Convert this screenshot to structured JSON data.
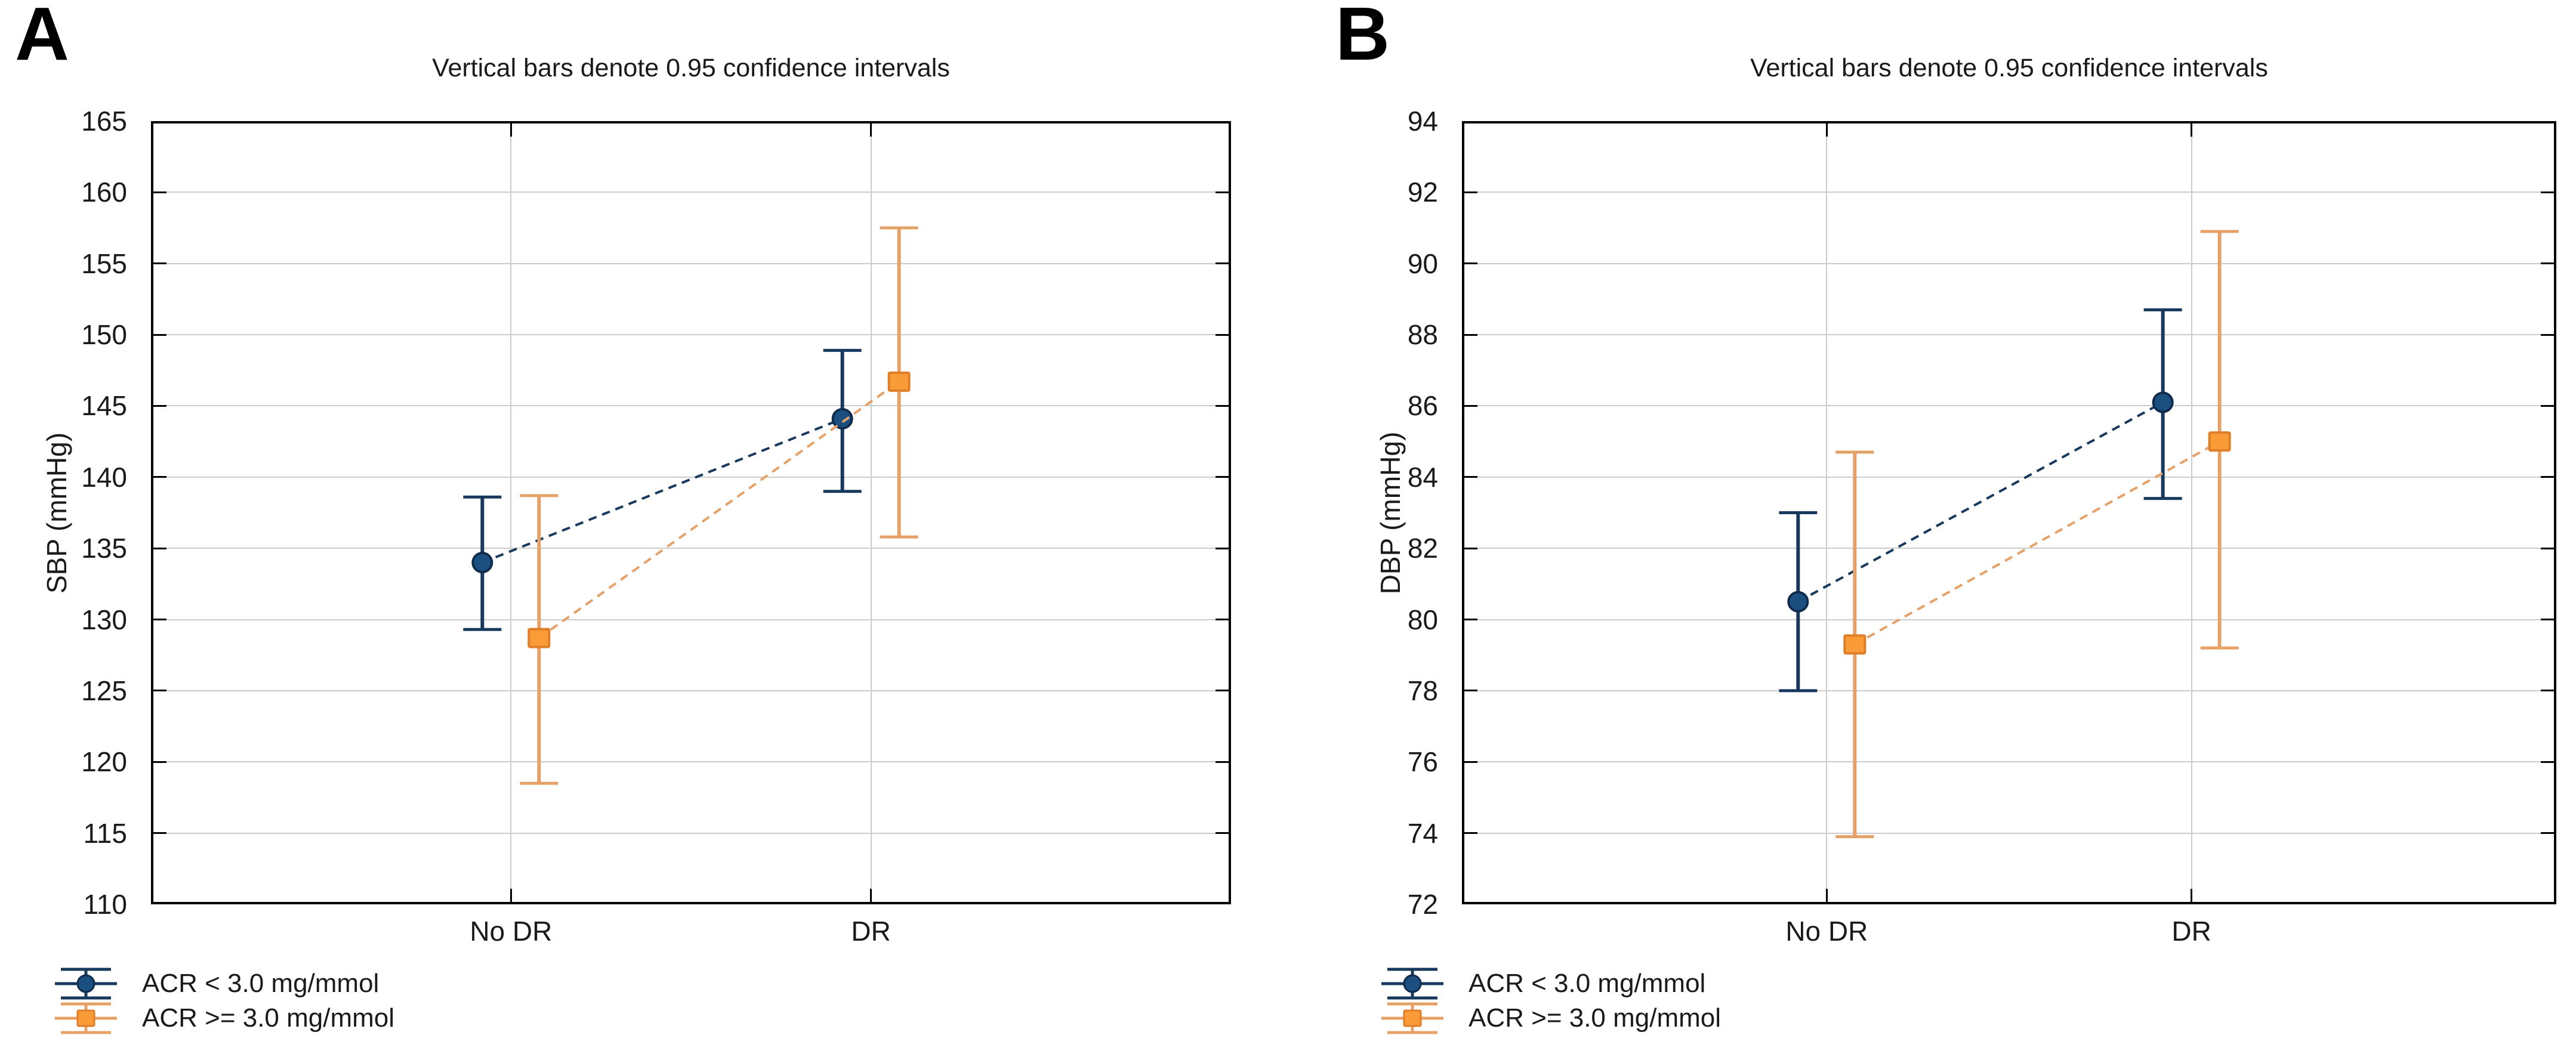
{
  "figure_note": "Two-panel means plot with 95% confidence interval whiskers",
  "chart_data": [
    {
      "type": "line",
      "panel_label": "A",
      "title": "Vertical bars denote 0.95 confidence intervals",
      "ylabel": "SBP (mmHg)",
      "xlabel": "",
      "ylim": [
        110,
        165
      ],
      "ystep": 5,
      "grid": true,
      "legend_position": "bottom-left",
      "categories": [
        "No DR",
        "DR"
      ],
      "series": [
        {
          "name": "ACR < 3.0 mg/mmol",
          "marker": "circle",
          "marker_fill": "#1b4f80",
          "marker_edge": "#0f2c4d",
          "line_color": "#17395d",
          "means": [
            134.0,
            144.1
          ],
          "ci_low": [
            129.3,
            139.0
          ],
          "ci_high": [
            138.6,
            148.9
          ]
        },
        {
          "name": "ACR >= 3.0 mg/mmol",
          "marker": "square",
          "marker_fill": "#f99c38",
          "marker_edge": "#df7e27",
          "line_color": "#e6a169",
          "means": [
            128.7,
            146.7
          ],
          "ci_low": [
            118.5,
            135.8
          ],
          "ci_high": [
            138.7,
            157.5
          ]
        }
      ]
    },
    {
      "type": "line",
      "panel_label": "B",
      "title": "Vertical bars denote 0.95 confidence intervals",
      "ylabel": "DBP (mmHg)",
      "xlabel": "",
      "ylim": [
        72,
        94
      ],
      "ystep": 2,
      "grid": true,
      "legend_position": "bottom-left",
      "categories": [
        "No DR",
        "DR"
      ],
      "series": [
        {
          "name": "ACR < 3.0 mg/mmol",
          "marker": "circle",
          "marker_fill": "#1b4f80",
          "marker_edge": "#0f2c4d",
          "line_color": "#17395d",
          "means": [
            80.5,
            86.1
          ],
          "ci_low": [
            78.0,
            83.4
          ],
          "ci_high": [
            83.0,
            88.7
          ]
        },
        {
          "name": "ACR >= 3.0 mg/mmol",
          "marker": "square",
          "marker_fill": "#f99c38",
          "marker_edge": "#df7e27",
          "line_color": "#e6a169",
          "means": [
            79.3,
            85.0
          ],
          "ci_low": [
            73.9,
            79.2
          ],
          "ci_high": [
            84.7,
            90.9
          ]
        }
      ]
    }
  ],
  "colors": {
    "grid": "#cccccc",
    "axis_box": "#000000",
    "text": "#1a1a1a",
    "background": "#ffffff",
    "series1": "#1b4f80",
    "series2": "#f99c38"
  }
}
